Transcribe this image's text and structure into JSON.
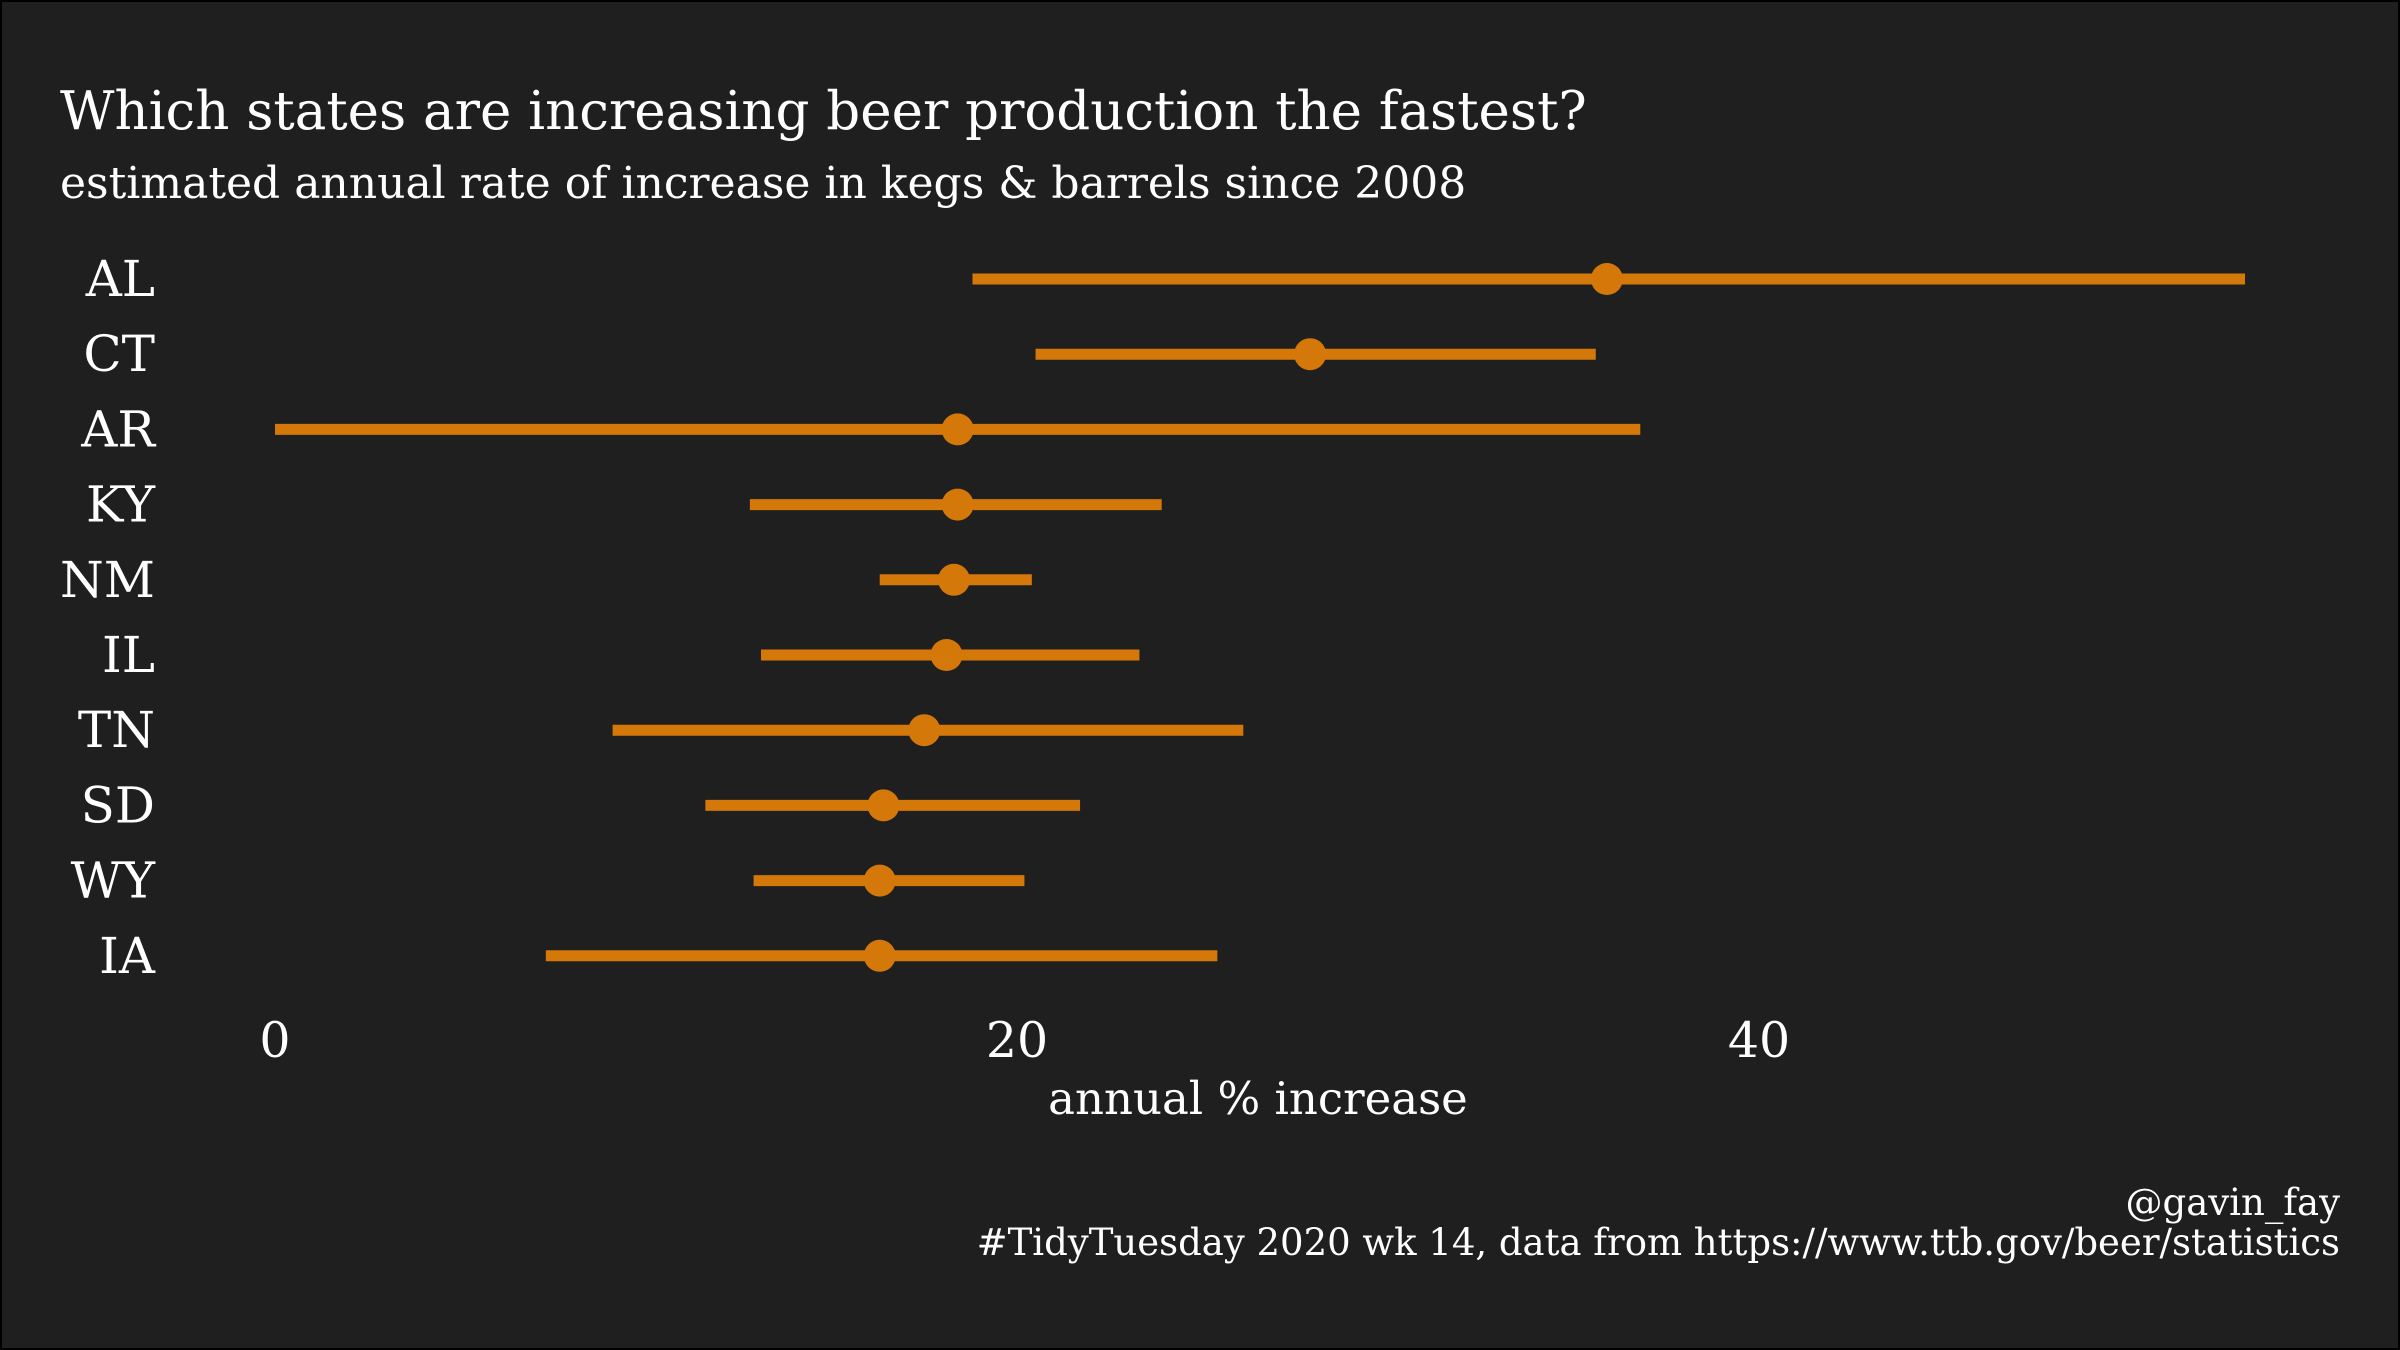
{
  "chart_data": {
    "type": "point-range",
    "title": "Which states are increasing beer production the fastest?",
    "subtitle": "estimated annual rate of increase in kegs & barrels since 2008",
    "xlabel": "annual % increase",
    "ylabel": "",
    "xlim": [
      0,
      53
    ],
    "x_ticks": [
      0,
      20,
      40
    ],
    "categories": [
      "AL",
      "CT",
      "AR",
      "KY",
      "NM",
      "IL",
      "TN",
      "SD",
      "WY",
      "IA"
    ],
    "estimate": [
      35.9,
      27.9,
      18.4,
      18.4,
      18.3,
      18.1,
      17.5,
      16.4,
      16.3,
      16.3
    ],
    "lower": [
      18.8,
      20.5,
      0.0,
      12.8,
      16.3,
      13.1,
      9.1,
      11.6,
      12.9,
      7.3
    ],
    "upper": [
      53.1,
      35.6,
      36.8,
      23.9,
      20.4,
      23.3,
      26.1,
      21.7,
      20.2,
      25.4
    ],
    "color": "#d4780a",
    "background": "#1f1f1f",
    "grid": false,
    "legend": "none"
  },
  "caption": {
    "handle": "@gavin_fay",
    "source": "#TidyTuesday 2020 wk 14, data from https://www.ttb.gov/beer/statistics"
  }
}
